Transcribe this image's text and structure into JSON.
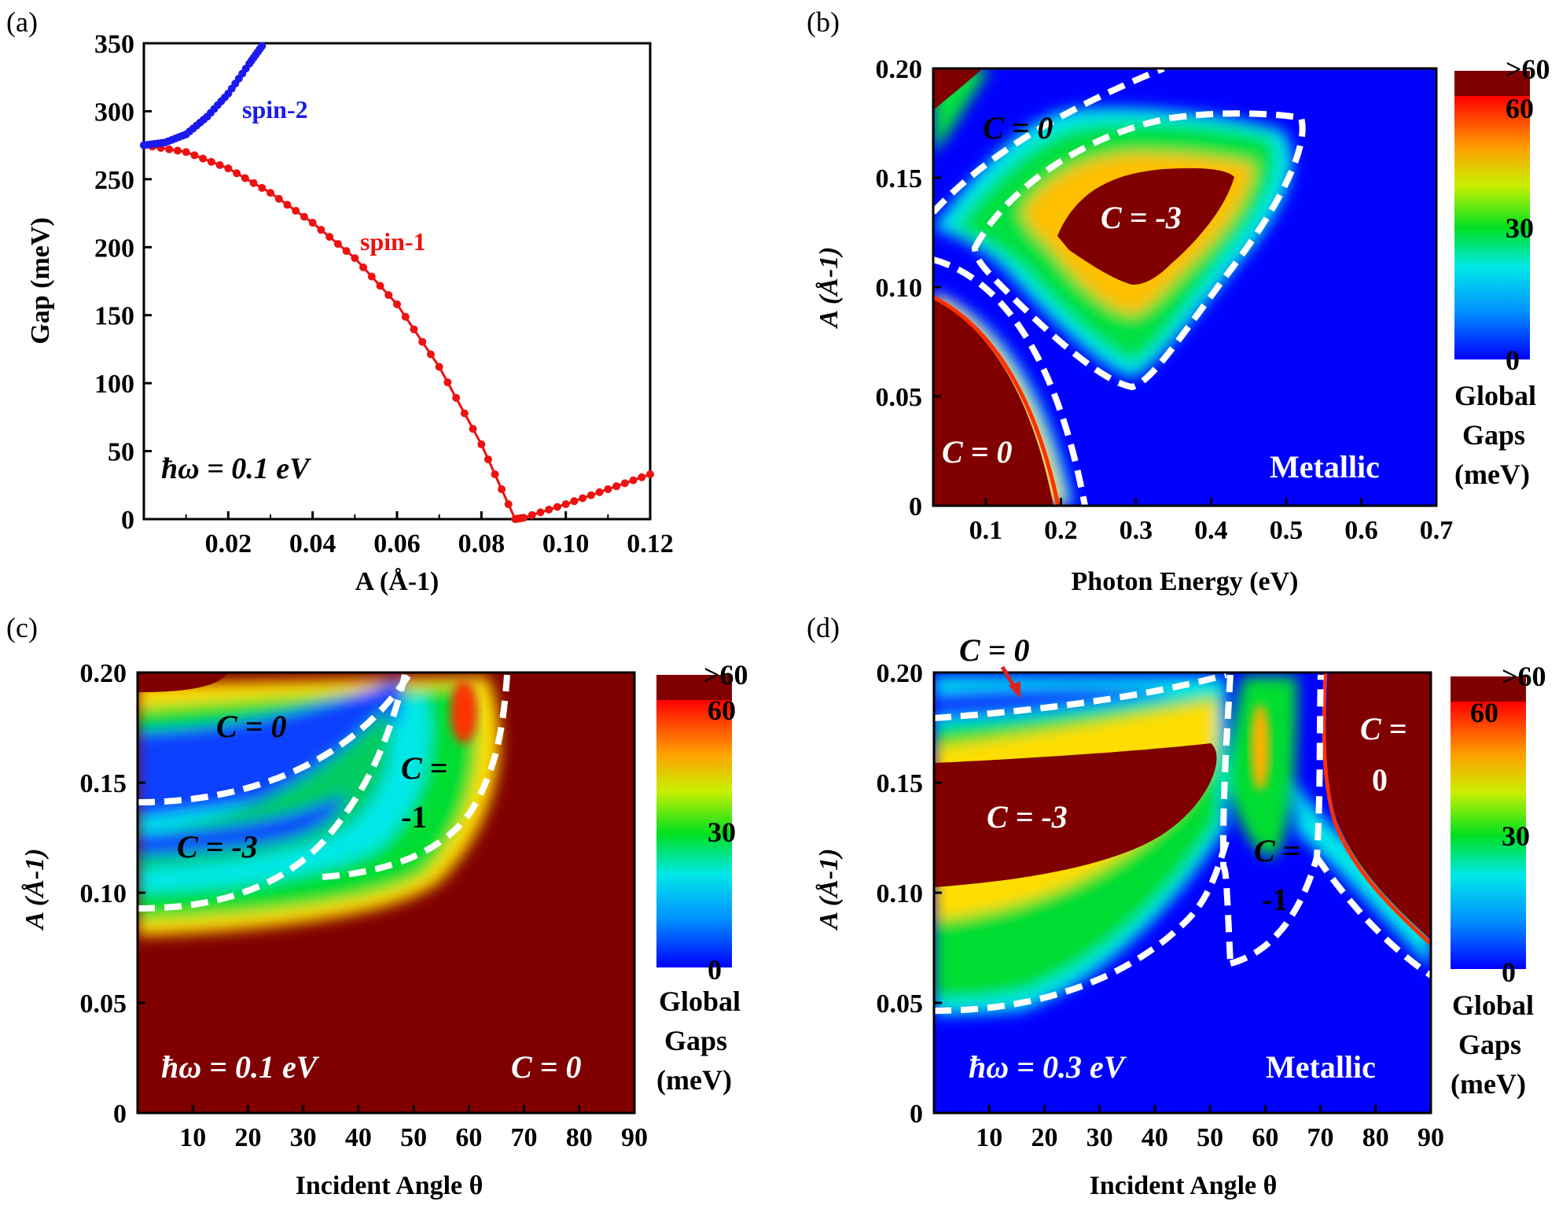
{
  "panel_labels": [
    "(a)",
    "(b)",
    "(c)",
    "(d)"
  ],
  "colorbar": {
    "top_label": ">60",
    "ticks": [
      "60",
      "30",
      "0"
    ],
    "title_lines": [
      "Global",
      "Gaps",
      "(meV)"
    ]
  },
  "chart_data": [
    {
      "type": "scatter",
      "panel": "(a)",
      "xlabel": "A (Å-1)",
      "ylabel": "Gap (meV)",
      "xlim": [
        0,
        0.12
      ],
      "ylim": [
        0,
        350
      ],
      "xticks": [
        "0.02",
        "0.04",
        "0.06",
        "0.08",
        "0.10",
        "0.12"
      ],
      "yticks": [
        "0",
        "50",
        "100",
        "150",
        "200",
        "250",
        "300",
        "350"
      ],
      "annotation": "ħω = 0.1 eV",
      "series": [
        {
          "name": "spin-1",
          "color": "#ee1111",
          "x": [
            0.0,
            0.01,
            0.02,
            0.03,
            0.04,
            0.05,
            0.06,
            0.07,
            0.08,
            0.088,
            0.09,
            0.1,
            0.11,
            0.12
          ],
          "y": [
            275,
            270,
            258,
            240,
            218,
            192,
            158,
            112,
            55,
            0,
            1,
            11,
            22,
            33
          ]
        },
        {
          "name": "spin-2",
          "color": "#1a1aee",
          "x": [
            0.0,
            0.005,
            0.01,
            0.015,
            0.02,
            0.025,
            0.028
          ],
          "y": [
            275,
            277,
            283,
            296,
            313,
            335,
            348
          ]
        }
      ]
    },
    {
      "type": "heatmap",
      "panel": "(b)",
      "xlabel": "Photon Energy (eV)",
      "ylabel": "A (Å-1)",
      "xlim": [
        0.03,
        0.7
      ],
      "ylim": [
        0,
        0.2
      ],
      "xticks": [
        "0.1",
        "0.2",
        "0.3",
        "0.4",
        "0.5",
        "0.6",
        "0.7"
      ],
      "yticks": [
        "0",
        "0.05",
        "0.10",
        "0.15",
        "0.20"
      ],
      "colorbar_range_meV": [
        0,
        60
      ],
      "region_labels": [
        "C = 0",
        "C = -3",
        "C = 0",
        "Metallic"
      ]
    },
    {
      "type": "heatmap",
      "panel": "(c)",
      "xlabel": "Incident Angle θ",
      "ylabel": "A (Å-1)",
      "xlim": [
        0,
        90
      ],
      "ylim": [
        0,
        0.2
      ],
      "xticks": [
        "10",
        "20",
        "30",
        "40",
        "50",
        "60",
        "70",
        "80",
        "90"
      ],
      "yticks": [
        "0",
        "0.05",
        "0.10",
        "0.15",
        "0.20"
      ],
      "colorbar_range_meV": [
        0,
        60
      ],
      "annotation": "ħω = 0.1 eV",
      "region_labels": [
        "C = 0",
        "C = -3",
        "C =",
        "-1",
        "C = 0"
      ]
    },
    {
      "type": "heatmap",
      "panel": "(d)",
      "xlabel": "Incident Angle θ",
      "ylabel": "A (Å-1)",
      "xlim": [
        0,
        90
      ],
      "ylim": [
        0,
        0.2
      ],
      "xticks": [
        "10",
        "20",
        "30",
        "40",
        "50",
        "60",
        "70",
        "80",
        "90"
      ],
      "yticks": [
        "0",
        "0.05",
        "0.10",
        "0.15",
        "0.20"
      ],
      "colorbar_range_meV": [
        0,
        60
      ],
      "annotation": "ħω = 0.3 eV",
      "region_labels": [
        "C = 0",
        "C = -3",
        "C =",
        "-1",
        "C =",
        "0",
        "Metallic"
      ]
    }
  ]
}
